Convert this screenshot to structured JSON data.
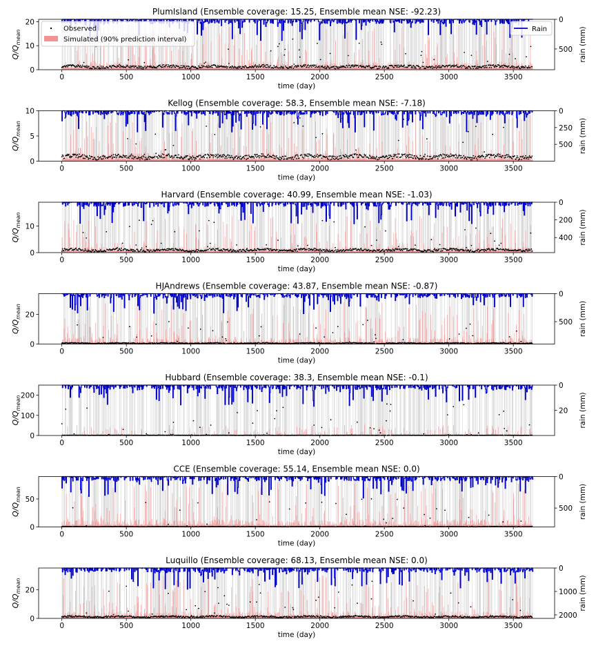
{
  "figure": {
    "background": "#ffffff"
  },
  "common": {
    "xlabel": "time (day)",
    "ylabel_main": "Q/Q",
    "ylabel_sub": "mean",
    "ylabel_right": "rain (mm)",
    "xlim": [
      -180,
      3820
    ],
    "xticks": [
      0,
      500,
      1000,
      1500,
      2000,
      2500,
      3000,
      3500
    ],
    "days": 3650
  },
  "legend_left": {
    "placement": "top-left",
    "items": [
      {
        "label": "Observed",
        "kind": "marker",
        "color": "#000000"
      },
      {
        "label": "Simulated (90% prediction interval)",
        "kind": "patch",
        "color": "#f08080"
      }
    ]
  },
  "legend_right": {
    "placement": "top-right",
    "items": [
      {
        "label": "Rain",
        "kind": "line",
        "color": "#0000cc"
      }
    ]
  },
  "colors": {
    "observed": "#000000",
    "simulated": "#f08080",
    "rain": "#0000cc",
    "rain_fill": "#c8c8c8"
  },
  "chart_data": [
    {
      "type": "line",
      "title": "PlumIsland (Ensemble coverage: 15.25, Ensemble mean NSE: -92.23)",
      "ylim": [
        0,
        21
      ],
      "yticks": [
        0,
        10,
        20
      ],
      "rain_max": 850,
      "rain_ticks": [
        0,
        500
      ],
      "obs_base": 1.3,
      "obs_peak": 12,
      "sim_peak": 20,
      "series": [
        "Observed",
        "Simulated (90% prediction interval)",
        "Rain"
      ]
    },
    {
      "type": "line",
      "title": "Kellog (Ensemble coverage: 58.3, Ensemble mean NSE: -7.18)",
      "ylim": [
        0,
        10
      ],
      "yticks": [
        0,
        5,
        10
      ],
      "rain_max": 750,
      "rain_ticks": [
        0,
        250,
        500
      ],
      "obs_base": 0.9,
      "obs_peak": 9,
      "sim_peak": 9.5,
      "series": [
        "Observed",
        "Simulated (90% prediction interval)",
        "Rain"
      ]
    },
    {
      "type": "line",
      "title": "Harvard (Ensemble coverage: 40.99, Ensemble mean NSE: -1.03)",
      "ylim": [
        0,
        19
      ],
      "yticks": [
        0,
        10
      ],
      "rain_max": 570,
      "rain_ticks": [
        0,
        200,
        400
      ],
      "obs_base": 1.0,
      "obs_peak": 12,
      "sim_peak": 14,
      "series": [
        "Observed",
        "Simulated (90% prediction interval)",
        "Rain"
      ]
    },
    {
      "type": "line",
      "title": "HJAndrews (Ensemble coverage: 43.87, Ensemble mean NSE: -0.87)",
      "ylim": [
        0,
        34
      ],
      "yticks": [
        0,
        20
      ],
      "rain_max": 900,
      "rain_ticks": [
        0,
        500
      ],
      "obs_base": 0.6,
      "obs_peak": 17,
      "sim_peak": 28,
      "series": [
        "Observed",
        "Simulated (90% prediction interval)",
        "Rain"
      ]
    },
    {
      "type": "line",
      "title": "Hubbard (Ensemble coverage: 38.3, Ensemble mean NSE: -0.1)",
      "ylim": [
        0,
        250
      ],
      "yticks": [
        0,
        100,
        200
      ],
      "rain_max": 40,
      "rain_ticks": [
        0,
        20
      ],
      "obs_base": 1.0,
      "obs_peak": 170,
      "sim_peak": 55,
      "series": [
        "Observed",
        "Simulated (90% prediction interval)",
        "Rain"
      ]
    },
    {
      "type": "line",
      "title": "CCE (Ensemble coverage: 55.14, Ensemble mean NSE: 0.0)",
      "ylim": [
        0,
        90
      ],
      "yticks": [
        0,
        50
      ],
      "rain_max": 800,
      "rain_ticks": [
        0,
        500
      ],
      "obs_base": 0.5,
      "obs_peak": 50,
      "sim_peak": 85,
      "series": [
        "Observed",
        "Simulated (90% prediction interval)",
        "Rain"
      ]
    },
    {
      "type": "line",
      "title": "Luquillo (Ensemble coverage: 68.13, Ensemble mean NSE: 0.0)",
      "ylim": [
        0,
        35
      ],
      "yticks": [
        0,
        20
      ],
      "rain_max": 2150,
      "rain_ticks": [
        0,
        1000,
        2000
      ],
      "obs_base": 1.2,
      "obs_peak": 25,
      "sim_peak": 30,
      "series": [
        "Observed",
        "Simulated (90% prediction interval)",
        "Rain"
      ]
    }
  ]
}
